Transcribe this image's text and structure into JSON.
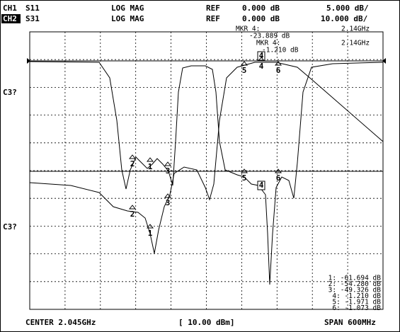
{
  "header": {
    "rows": [
      {
        "channel": "CH1",
        "param": "S11",
        "format": "LOG MAG",
        "ref_label": "REF",
        "ref_value": "0.000 dB",
        "scale": "5.000 dB/"
      },
      {
        "channel": "CH2",
        "param": "S31",
        "format": "LOG MAG",
        "ref_label": "REF",
        "ref_value": "0.000 dB",
        "scale": "10.000 dB/"
      }
    ]
  },
  "marker_readouts": [
    {
      "label": "MKR 4:",
      "value": "-23.889 dB",
      "freq": "2.14GHz"
    },
    {
      "label": "MKR 4:",
      "value": "-1.210 dB",
      "freq": "2.14GHz"
    }
  ],
  "side_labels": [
    "C3?",
    "C3?"
  ],
  "trace_markers": {
    "upper": [
      "2",
      "1",
      "3",
      "5",
      "4",
      "6"
    ],
    "lower": [
      "2",
      "1",
      "3",
      "5",
      "4",
      "6"
    ],
    "ref": [
      "4"
    ]
  },
  "marker_list": [
    "1: -61.694 dB",
    "2: -54.280 dB",
    "3: -49.326 dB",
    "4: -1.210 dB",
    "5: -1.971 dB",
    "6: -1.073 dB"
  ],
  "footer": {
    "center": "CENTER 2.045GHz",
    "power": "[ 10.00 dBm]",
    "span": "SPAN 600MHz"
  }
}
